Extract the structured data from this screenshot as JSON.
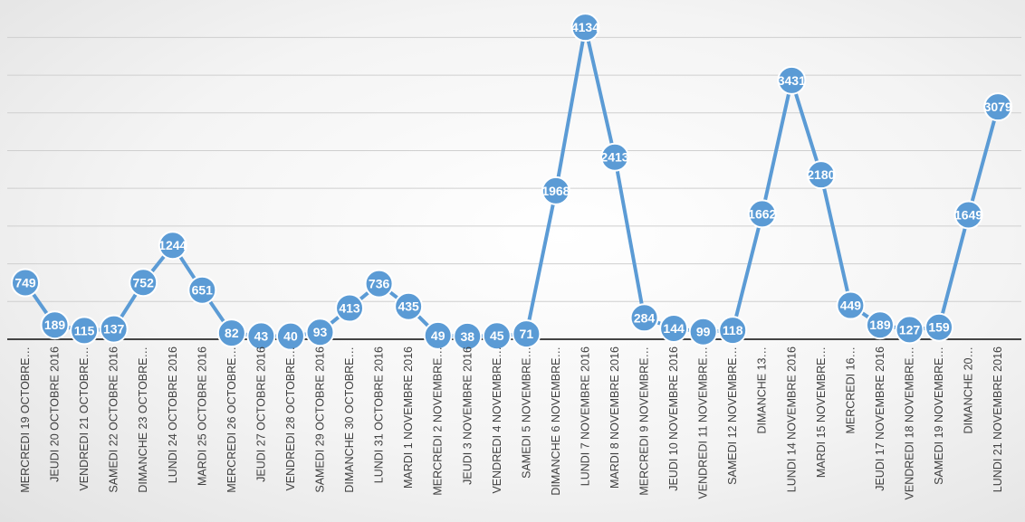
{
  "chart_data": {
    "type": "line",
    "title": "",
    "xlabel": "",
    "ylabel": "",
    "ylim": [
      0,
      4400
    ],
    "grid": true,
    "legend": "none",
    "color": "#5b9bd5",
    "categories": [
      "MERCREDI 19 OCTOBRE…",
      "JEUDI 20 OCTOBRE 2016",
      "VENDREDI 21 OCTOBRE…",
      "SAMEDI 22 OCTOBRE 2016",
      "DIMANCHE 23 OCTOBRE…",
      "LUNDI 24 OCTOBRE 2016",
      "MARDI 25 OCTOBRE 2016",
      "MERCREDI 26 OCTOBRE…",
      "JEUDI 27 OCTOBRE 2016",
      "VENDREDI 28 OCTOBRE…",
      "SAMEDI 29 OCTOBRE 2016",
      "DIMANCHE 30 OCTOBRE…",
      "LUNDI 31 OCTOBRE 2016",
      "MARDI 1 NOVEMBRE 2016",
      "MERCREDI 2 NOVEMBRE…",
      "JEUDI 3 NOVEMBRE 2016",
      "VENDREDI 4 NOVEMBRE…",
      "SAMEDI 5 NOVEMBRE…",
      "DIMANCHE 6 NOVEMBRE…",
      "LUNDI 7 NOVEMBRE 2016",
      "MARDI 8 NOVEMBRE 2016",
      "MERCREDI 9 NOVEMBRE…",
      "JEUDI 10 NOVEMBRE 2016",
      "VENDREDI 11 NOVEMBRE…",
      "SAMEDI 12 NOVEMBRE…",
      "DIMANCHE 13…",
      "LUNDI 14 NOVEMBRE 2016",
      "MARDI 15 NOVEMBRE…",
      "MERCREDI 16…",
      "JEUDI 17 NOVEMBRE 2016",
      "VENDREDI 18 NOVEMBRE…",
      "SAMEDI 19 NOVEMBRE…",
      "DIMANCHE 20…",
      "LUNDI 21 NOVEMBRE 2016"
    ],
    "series": [
      {
        "values": [
          749,
          189,
          115,
          137,
          752,
          1244,
          651,
          82,
          43,
          40,
          93,
          413,
          736,
          435,
          49,
          38,
          45,
          71,
          1968,
          4134,
          2413,
          284,
          144,
          99,
          118,
          1662,
          3431,
          2180,
          449,
          189,
          127,
          159,
          1649,
          3079
        ]
      }
    ]
  }
}
